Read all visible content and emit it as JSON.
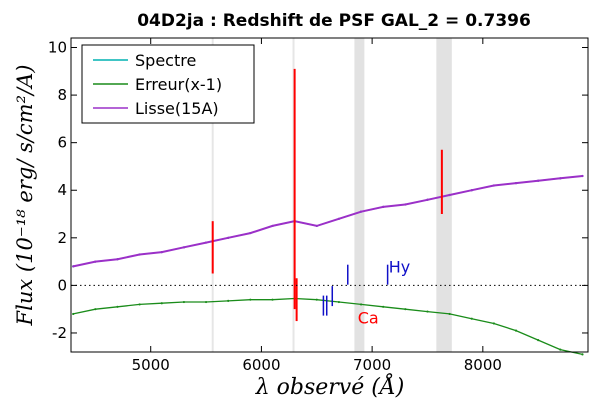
{
  "chart_data": {
    "type": "line",
    "title": "04D2ja : Redshift de PSF GAL_2 = 0.7396",
    "xlabel": "λ observé (Å)",
    "ylabel": "Flux (10⁻¹⁸ erg/ s/cm²/A)",
    "xlim": [
      4280,
      8950
    ],
    "ylim": [
      -2.8,
      10.4
    ],
    "x_ticks": [
      5000,
      6000,
      7000,
      8000
    ],
    "y_ticks": [
      -2,
      0,
      2,
      4,
      6,
      8,
      10
    ],
    "grid": false,
    "zero_line": true,
    "legend_position": "top-left",
    "series": [
      {
        "name": "Spectre",
        "color": "#00b2b2",
        "x": [
          4300,
          4500,
          4700,
          4900,
          5100,
          5300,
          5500,
          5700,
          5900,
          6100,
          6300,
          6500,
          6700,
          6900,
          7100,
          7300,
          7500,
          7700,
          7900,
          8100,
          8300,
          8500,
          8700,
          8900
        ],
        "y": [
          0.8,
          1.0,
          1.1,
          1.3,
          1.4,
          1.6,
          1.8,
          2.0,
          2.2,
          2.5,
          2.7,
          2.5,
          2.8,
          3.1,
          3.3,
          3.4,
          3.6,
          3.8,
          4.0,
          4.2,
          4.3,
          4.4,
          4.5,
          4.6
        ]
      },
      {
        "name": "Erreur(x-1)",
        "color": "#1a8c1a",
        "x": [
          4300,
          4500,
          4700,
          4900,
          5100,
          5300,
          5500,
          5700,
          5900,
          6100,
          6300,
          6500,
          6700,
          6900,
          7100,
          7300,
          7500,
          7700,
          7900,
          8100,
          8300,
          8500,
          8700,
          8900
        ],
        "y": [
          -1.2,
          -1.0,
          -0.9,
          -0.8,
          -0.75,
          -0.7,
          -0.7,
          -0.65,
          -0.6,
          -0.6,
          -0.55,
          -0.6,
          -0.7,
          -0.8,
          -0.9,
          -1.0,
          -1.1,
          -1.2,
          -1.4,
          -1.6,
          -1.9,
          -2.3,
          -2.7,
          -2.9
        ]
      },
      {
        "name": "Lisse(15A)",
        "color": "#9b30c8",
        "x": [
          4300,
          4500,
          4700,
          4900,
          5100,
          5300,
          5500,
          5700,
          5900,
          6100,
          6300,
          6500,
          6700,
          6900,
          7100,
          7300,
          7500,
          7700,
          7900,
          8100,
          8300,
          8500,
          8700,
          8900
        ],
        "y": [
          0.8,
          1.0,
          1.1,
          1.3,
          1.4,
          1.6,
          1.8,
          2.0,
          2.2,
          2.5,
          2.7,
          2.5,
          2.8,
          3.1,
          3.3,
          3.4,
          3.6,
          3.8,
          4.0,
          4.2,
          4.3,
          4.4,
          4.5,
          4.6
        ]
      }
    ],
    "shaded_bands": [
      [
        6840,
        6930
      ],
      [
        7580,
        7720
      ]
    ],
    "thin_lines": [
      5560,
      6290
    ],
    "line_labels": [
      {
        "text": "Hy",
        "x": 7150,
        "y": 0.55,
        "color": "#1010c8"
      },
      {
        "text": "Ca",
        "x": 6870,
        "y": -1.6,
        "color": "#ff0000"
      }
    ],
    "line_markers": [
      {
        "x": 6560,
        "y": -0.85,
        "color": "#1010c8"
      },
      {
        "x": 6590,
        "y": -0.85,
        "color": "#1010c8"
      },
      {
        "x": 6640,
        "y": -0.45,
        "color": "#1010c8"
      },
      {
        "x": 6780,
        "y": 0.45,
        "color": "#1010c8"
      },
      {
        "x": 7140,
        "y": 0.45,
        "color": "#1010c8"
      }
    ],
    "red_spikes": [
      {
        "x": 5560,
        "y_top": 2.7,
        "y_bottom": 0.5
      },
      {
        "x": 6300,
        "y_top": 9.1,
        "y_bottom": -1.0
      },
      {
        "x": 6318,
        "y_top": 0.3,
        "y_bottom": -1.5
      },
      {
        "x": 7630,
        "y_top": 5.7,
        "y_bottom": 3.0
      }
    ]
  }
}
